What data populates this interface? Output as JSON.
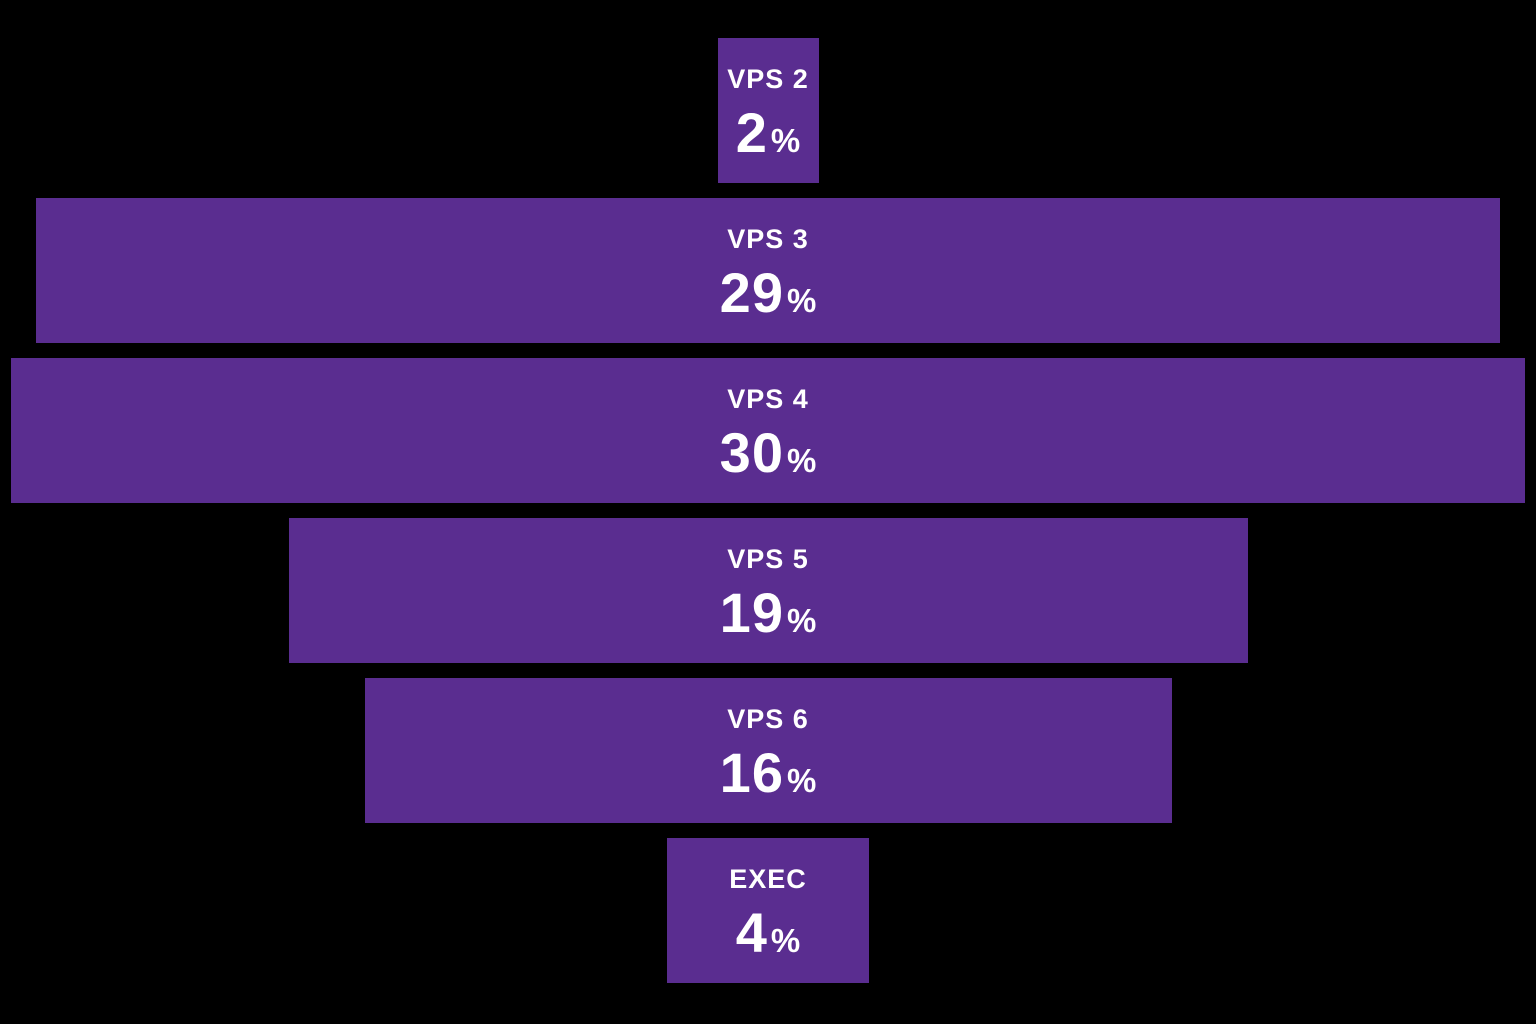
{
  "page": {
    "background_color": "#000000"
  },
  "chart_data": {
    "type": "bar",
    "subtype": "centered-funnel",
    "orientation": "horizontal",
    "title": "",
    "xlabel": "",
    "ylabel": "",
    "categories": [
      "VPS 2",
      "VPS 3",
      "VPS 4",
      "VPS 5",
      "VPS 6",
      "EXEC"
    ],
    "values": [
      2,
      29,
      30,
      19,
      16,
      4
    ],
    "value_suffix": "%",
    "xlim": [
      0,
      30
    ],
    "grid": false,
    "legend": false,
    "bar_color": "#5a2d90",
    "text_color": "#ffffff",
    "background": "#000000"
  }
}
